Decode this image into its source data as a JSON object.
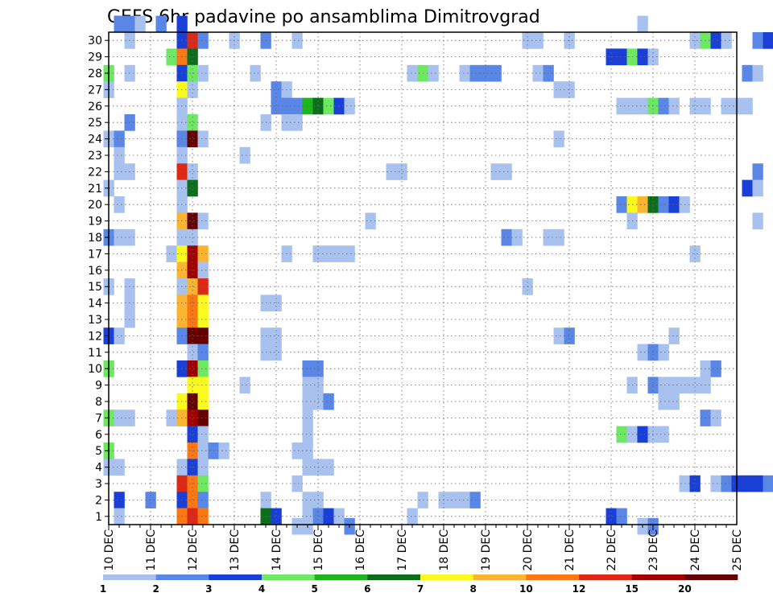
{
  "chart_data": {
    "type": "heatmap",
    "title": "GEFS 6hr padavine po ansamblima Dimitrovgrad",
    "xlabel": "",
    "ylabel": "",
    "x_tick_labels": [
      "10 DEC",
      "11 DEC",
      "12 DEC",
      "13 DEC",
      "14 DEC",
      "15 DEC",
      "16 DEC",
      "17 DEC",
      "18 DEC",
      "19 DEC",
      "20 DEC",
      "21 DEC",
      "22 DEC",
      "23 DEC",
      "24 DEC",
      "25 DEC"
    ],
    "y_tick_labels": [
      "1",
      "2",
      "3",
      "4",
      "5",
      "6",
      "7",
      "8",
      "9",
      "10",
      "11",
      "12",
      "13",
      "14",
      "15",
      "16",
      "17",
      "18",
      "19",
      "20",
      "21",
      "22",
      "23",
      "24",
      "25",
      "26",
      "27",
      "28",
      "29",
      "30"
    ],
    "time_steps_per_day": 4,
    "members": 30,
    "grid": true,
    "colorbar": {
      "boundaries": [
        "1",
        "2",
        "3",
        "4",
        "5",
        "6",
        "7",
        "8",
        "10",
        "12",
        "15",
        "20"
      ],
      "colors": [
        "#a9c1ef",
        "#5a86e6",
        "#1a3fd6",
        "#6ee862",
        "#1eb41e",
        "#0a6e1a",
        "#fafa1e",
        "#fab432",
        "#fa7814",
        "#dc2814",
        "#a00000",
        "#640000"
      ]
    },
    "cells": [
      [
        10.25,
        30,
        1
      ],
      [
        10.5,
        30,
        1
      ],
      [
        10.75,
        30,
        0
      ],
      [
        11.25,
        30,
        1
      ],
      [
        11.75,
        30,
        2
      ],
      [
        22.75,
        30,
        0
      ],
      [
        10.5,
        29,
        0
      ],
      [
        11.75,
        29,
        2
      ],
      [
        12.0,
        29,
        9
      ],
      [
        12.25,
        29,
        1
      ],
      [
        13.0,
        29,
        0
      ],
      [
        13.75,
        29,
        1
      ],
      [
        14.5,
        29,
        0
      ],
      [
        20.0,
        29,
        0
      ],
      [
        20.25,
        29,
        0
      ],
      [
        21.0,
        29,
        0
      ],
      [
        24.0,
        29,
        0
      ],
      [
        24.25,
        29,
        3
      ],
      [
        24.5,
        29,
        2
      ],
      [
        24.75,
        29,
        0
      ],
      [
        25.5,
        29,
        1
      ],
      [
        25.75,
        29,
        2
      ],
      [
        11.5,
        28,
        3
      ],
      [
        11.75,
        28,
        8
      ],
      [
        12.0,
        28,
        5
      ],
      [
        22.0,
        28,
        2
      ],
      [
        22.25,
        28,
        2
      ],
      [
        22.5,
        28,
        3
      ],
      [
        22.75,
        28,
        2
      ],
      [
        23.0,
        28,
        0
      ],
      [
        10.0,
        27,
        3
      ],
      [
        10.5,
        27,
        0
      ],
      [
        11.75,
        27,
        2
      ],
      [
        12.0,
        27,
        3
      ],
      [
        12.25,
        27,
        0
      ],
      [
        13.5,
        27,
        0
      ],
      [
        17.25,
        27,
        0
      ],
      [
        17.5,
        27,
        3
      ],
      [
        17.75,
        27,
        0
      ],
      [
        18.5,
        27,
        0
      ],
      [
        18.75,
        27,
        1
      ],
      [
        19.0,
        27,
        1
      ],
      [
        19.25,
        27,
        1
      ],
      [
        20.25,
        27,
        0
      ],
      [
        20.5,
        27,
        1
      ],
      [
        25.25,
        27,
        1
      ],
      [
        25.5,
        27,
        0
      ],
      [
        10.0,
        26,
        0
      ],
      [
        11.75,
        26,
        6
      ],
      [
        12.0,
        26,
        0
      ],
      [
        14.0,
        26,
        1
      ],
      [
        14.25,
        26,
        0
      ],
      [
        20.75,
        26,
        0
      ],
      [
        21.0,
        26,
        0
      ],
      [
        11.75,
        25,
        0
      ],
      [
        14.0,
        25,
        1
      ],
      [
        14.25,
        25,
        1
      ],
      [
        14.5,
        25,
        1
      ],
      [
        14.75,
        25,
        4
      ],
      [
        15.0,
        25,
        5
      ],
      [
        15.25,
        25,
        3
      ],
      [
        15.5,
        25,
        2
      ],
      [
        15.75,
        25,
        0
      ],
      [
        22.25,
        25,
        0
      ],
      [
        22.5,
        25,
        0
      ],
      [
        22.75,
        25,
        0
      ],
      [
        23.0,
        25,
        3
      ],
      [
        23.25,
        25,
        1
      ],
      [
        23.5,
        25,
        0
      ],
      [
        24.0,
        25,
        0
      ],
      [
        24.25,
        25,
        0
      ],
      [
        24.75,
        25,
        0
      ],
      [
        25.0,
        25,
        0
      ],
      [
        25.25,
        25,
        0
      ],
      [
        10.5,
        24,
        1
      ],
      [
        11.75,
        24,
        0
      ],
      [
        12.0,
        24,
        3
      ],
      [
        13.75,
        24,
        0
      ],
      [
        14.25,
        24,
        0
      ],
      [
        14.5,
        24,
        0
      ],
      [
        10.0,
        23,
        0
      ],
      [
        10.25,
        23,
        1
      ],
      [
        11.75,
        23,
        1
      ],
      [
        12.0,
        23,
        11
      ],
      [
        12.25,
        23,
        0
      ],
      [
        20.75,
        23,
        0
      ],
      [
        10.25,
        22,
        0
      ],
      [
        11.75,
        22,
        0
      ],
      [
        13.25,
        22,
        0
      ],
      [
        10.25,
        21,
        0
      ],
      [
        10.5,
        21,
        0
      ],
      [
        11.75,
        21,
        9
      ],
      [
        12.0,
        21,
        0
      ],
      [
        16.75,
        21,
        0
      ],
      [
        17.0,
        21,
        0
      ],
      [
        19.25,
        21,
        0
      ],
      [
        19.5,
        21,
        0
      ],
      [
        25.5,
        21,
        1
      ],
      [
        10.0,
        20,
        0
      ],
      [
        11.75,
        20,
        0
      ],
      [
        12.0,
        20,
        5
      ],
      [
        25.25,
        20,
        2
      ],
      [
        25.5,
        20,
        0
      ],
      [
        10.25,
        19,
        0
      ],
      [
        11.75,
        19,
        0
      ],
      [
        22.25,
        19,
        1
      ],
      [
        22.5,
        19,
        6
      ],
      [
        22.75,
        19,
        7
      ],
      [
        23.0,
        19,
        5
      ],
      [
        23.25,
        19,
        1
      ],
      [
        23.5,
        19,
        2
      ],
      [
        23.75,
        19,
        0
      ],
      [
        11.75,
        18,
        7
      ],
      [
        12.0,
        18,
        11
      ],
      [
        12.25,
        18,
        0
      ],
      [
        16.25,
        18,
        0
      ],
      [
        22.5,
        18,
        0
      ],
      [
        25.5,
        18,
        0
      ],
      [
        10.0,
        17,
        1
      ],
      [
        10.25,
        17,
        0
      ],
      [
        10.5,
        17,
        0
      ],
      [
        11.75,
        17,
        0
      ],
      [
        12.0,
        17,
        0
      ],
      [
        19.5,
        17,
        1
      ],
      [
        19.75,
        17,
        0
      ],
      [
        20.5,
        17,
        0
      ],
      [
        20.75,
        17,
        0
      ],
      [
        11.5,
        16,
        0
      ],
      [
        11.75,
        16,
        6
      ],
      [
        12.0,
        16,
        10
      ],
      [
        12.25,
        16,
        7
      ],
      [
        14.25,
        16,
        0
      ],
      [
        15.0,
        16,
        0
      ],
      [
        15.25,
        16,
        0
      ],
      [
        15.5,
        16,
        0
      ],
      [
        15.75,
        16,
        0
      ],
      [
        24.0,
        16,
        0
      ],
      [
        11.75,
        15,
        7
      ],
      [
        12.0,
        15,
        10
      ],
      [
        12.25,
        15,
        0
      ],
      [
        10.0,
        14,
        0
      ],
      [
        10.5,
        14,
        0
      ],
      [
        11.75,
        14,
        0
      ],
      [
        12.0,
        14,
        7
      ],
      [
        12.25,
        14,
        9
      ],
      [
        20.0,
        14,
        0
      ],
      [
        10.5,
        13,
        0
      ],
      [
        11.75,
        13,
        7
      ],
      [
        12.0,
        13,
        8
      ],
      [
        12.25,
        13,
        6
      ],
      [
        13.75,
        13,
        0
      ],
      [
        14.0,
        13,
        0
      ],
      [
        10.5,
        12,
        0
      ],
      [
        11.75,
        12,
        7
      ],
      [
        12.0,
        12,
        8
      ],
      [
        12.25,
        12,
        6
      ],
      [
        10.0,
        11,
        2
      ],
      [
        10.25,
        11,
        0
      ],
      [
        11.75,
        11,
        1
      ],
      [
        12.0,
        11,
        11
      ],
      [
        12.25,
        11,
        11
      ],
      [
        13.75,
        11,
        0
      ],
      [
        14.0,
        11,
        0
      ],
      [
        20.75,
        11,
        0
      ],
      [
        21.0,
        11,
        1
      ],
      [
        23.5,
        11,
        0
      ],
      [
        12.0,
        10,
        0
      ],
      [
        12.25,
        10,
        1
      ],
      [
        13.75,
        10,
        0
      ],
      [
        14.0,
        10,
        0
      ],
      [
        22.75,
        10,
        0
      ],
      [
        23.0,
        10,
        1
      ],
      [
        23.25,
        10,
        0
      ],
      [
        10.0,
        9,
        3
      ],
      [
        11.75,
        9,
        2
      ],
      [
        12.0,
        9,
        10
      ],
      [
        12.25,
        9,
        3
      ],
      [
        14.75,
        9,
        1
      ],
      [
        15.0,
        9,
        1
      ],
      [
        24.25,
        9,
        0
      ],
      [
        24.5,
        9,
        1
      ],
      [
        12.0,
        8,
        6
      ],
      [
        12.25,
        8,
        6
      ],
      [
        13.25,
        8,
        0
      ],
      [
        14.75,
        8,
        0
      ],
      [
        15.0,
        8,
        0
      ],
      [
        22.5,
        8,
        0
      ],
      [
        23.0,
        8,
        1
      ],
      [
        23.25,
        8,
        0
      ],
      [
        23.5,
        8,
        0
      ],
      [
        23.75,
        8,
        0
      ],
      [
        24.0,
        8,
        0
      ],
      [
        24.25,
        8,
        0
      ],
      [
        11.75,
        7,
        6
      ],
      [
        12.0,
        7,
        11
      ],
      [
        12.25,
        7,
        6
      ],
      [
        14.75,
        7,
        0
      ],
      [
        15.0,
        7,
        0
      ],
      [
        15.25,
        7,
        1
      ],
      [
        23.25,
        7,
        0
      ],
      [
        23.5,
        7,
        0
      ],
      [
        10.0,
        6,
        3
      ],
      [
        10.25,
        6,
        0
      ],
      [
        10.5,
        6,
        0
      ],
      [
        11.5,
        6,
        0
      ],
      [
        11.75,
        6,
        7
      ],
      [
        12.0,
        6,
        10
      ],
      [
        12.25,
        6,
        11
      ],
      [
        14.75,
        6,
        0
      ],
      [
        24.25,
        6,
        1
      ],
      [
        24.5,
        6,
        0
      ],
      [
        12.0,
        5,
        2
      ],
      [
        12.25,
        5,
        0
      ],
      [
        14.75,
        5,
        0
      ],
      [
        22.25,
        5,
        3
      ],
      [
        22.5,
        5,
        0
      ],
      [
        22.75,
        5,
        2
      ],
      [
        23.0,
        5,
        0
      ],
      [
        23.25,
        5,
        0
      ],
      [
        10.0,
        4,
        3
      ],
      [
        12.0,
        4,
        8
      ],
      [
        12.25,
        4,
        0
      ],
      [
        12.5,
        4,
        1
      ],
      [
        12.75,
        4,
        0
      ],
      [
        14.5,
        4,
        0
      ],
      [
        14.75,
        4,
        0
      ],
      [
        10.0,
        3,
        0
      ],
      [
        10.25,
        3,
        0
      ],
      [
        11.75,
        3,
        0
      ],
      [
        12.0,
        3,
        2
      ],
      [
        12.25,
        3,
        0
      ],
      [
        14.75,
        3,
        0
      ],
      [
        15.0,
        3,
        0
      ],
      [
        15.25,
        3,
        0
      ],
      [
        11.75,
        2,
        9
      ],
      [
        12.0,
        2,
        8
      ],
      [
        12.25,
        2,
        3
      ],
      [
        14.5,
        2,
        0
      ],
      [
        23.75,
        2,
        0
      ],
      [
        24.0,
        2,
        2
      ],
      [
        24.5,
        2,
        0
      ],
      [
        24.75,
        2,
        1
      ],
      [
        25.0,
        2,
        2
      ],
      [
        25.25,
        2,
        2
      ],
      [
        25.5,
        2,
        2
      ],
      [
        25.75,
        2,
        1
      ],
      [
        10.25,
        1,
        2
      ],
      [
        11.0,
        1,
        1
      ],
      [
        11.75,
        1,
        2
      ],
      [
        12.0,
        1,
        8
      ],
      [
        12.25,
        1,
        1
      ],
      [
        13.75,
        1,
        0
      ],
      [
        14.75,
        1,
        0
      ],
      [
        15.0,
        1,
        0
      ],
      [
        17.5,
        1,
        0
      ],
      [
        18.0,
        1,
        0
      ],
      [
        18.25,
        1,
        0
      ],
      [
        18.5,
        1,
        0
      ],
      [
        18.75,
        1,
        1
      ],
      [
        10.25,
        0,
        0
      ],
      [
        11.75,
        0,
        8
      ],
      [
        12.0,
        0,
        9
      ],
      [
        12.25,
        0,
        8
      ],
      [
        13.75,
        0,
        5
      ],
      [
        14.0,
        0,
        2
      ],
      [
        14.75,
        0,
        0
      ],
      [
        15.0,
        0,
        1
      ],
      [
        15.25,
        0,
        2
      ],
      [
        15.5,
        0,
        0
      ],
      [
        17.25,
        0,
        0
      ],
      [
        22.0,
        0,
        2
      ],
      [
        22.25,
        0,
        1
      ],
      [
        14.5,
        -1,
        0
      ],
      [
        14.75,
        -1,
        0
      ],
      [
        15.75,
        -1,
        1
      ],
      [
        22.75,
        -1,
        0
      ],
      [
        23.0,
        -1,
        1
      ]
    ]
  }
}
